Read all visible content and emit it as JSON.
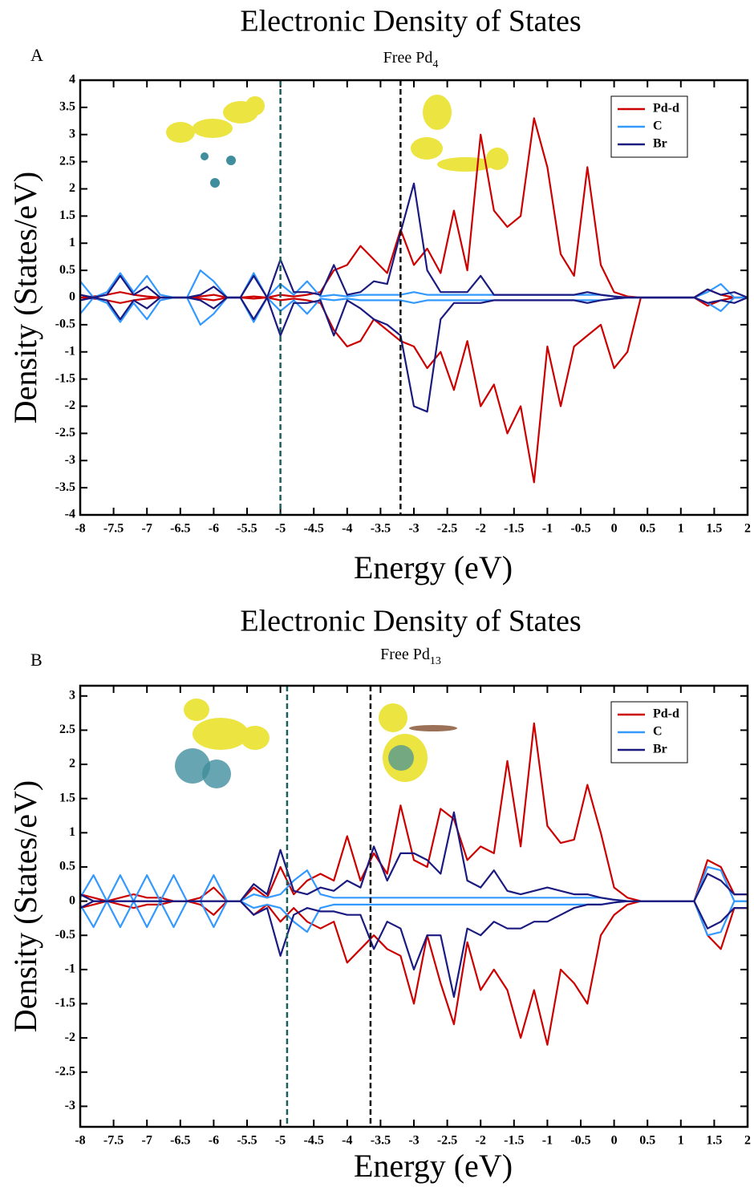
{
  "chart_data": [
    {
      "type": "line",
      "panel_label": "A",
      "title": "Electronic Density of States",
      "subtitle": [
        "Free Pd",
        "4"
      ],
      "xlabel": "Energy (eV)",
      "ylabel": "Density (States/eV)",
      "legend": "upper right",
      "x": [
        -8,
        -7.8,
        -7.6,
        -7.4,
        -7.2,
        -7,
        -6.8,
        -6.6,
        -6.4,
        -6.2,
        -6,
        -5.8,
        -5.6,
        -5.4,
        -5.2,
        -5,
        -4.8,
        -4.6,
        -4.4,
        -4.2,
        -4,
        -3.8,
        -3.6,
        -3.4,
        -3.2,
        -3,
        -2.8,
        -2.6,
        -2.4,
        -2.2,
        -2,
        -1.8,
        -1.6,
        -1.4,
        -1.2,
        -1,
        -0.8,
        -0.6,
        -0.4,
        -0.2,
        0,
        0.2,
        0.4,
        0.6,
        0.8,
        1,
        1.2,
        1.4,
        1.6,
        1.8,
        2
      ],
      "xlim": [
        -8,
        2
      ],
      "xticks": [
        -8,
        -7.5,
        -7,
        -6.5,
        -6,
        -5.5,
        -5,
        -4.5,
        -4,
        -3.5,
        -3,
        -2.5,
        -2,
        -1.5,
        -1,
        -0.5,
        0,
        0.5,
        1,
        1.5,
        2
      ],
      "ylim": [
        -4,
        4
      ],
      "yticks": [
        -4,
        -3.5,
        -3,
        -2.5,
        -2,
        -1.5,
        -1,
        -0.5,
        0,
        0.5,
        1,
        1.5,
        2,
        2.5,
        3,
        3.5,
        4
      ],
      "vlines": [
        {
          "value": -5,
          "color": "#1b5e5a"
        },
        {
          "value": -3.2,
          "color": "#111111"
        }
      ],
      "series": [
        {
          "name": "Pd-d",
          "color": "#cc0000",
          "values": [
            0,
            0.02,
            0.05,
            0.1,
            0.05,
            0.02,
            0,
            0,
            0,
            0.02,
            0.05,
            0,
            0,
            0.02,
            0,
            0.05,
            0.02,
            0.05,
            0.1,
            0.5,
            0.6,
            0.95,
            0.7,
            0.45,
            1.25,
            0.6,
            0.9,
            0.45,
            1.6,
            0.5,
            3.0,
            1.6,
            1.3,
            1.5,
            3.3,
            2.4,
            0.8,
            0.4,
            2.4,
            0.6,
            0.1,
            0.02,
            0,
            0,
            0,
            0,
            0,
            0.15,
            0.05,
            0,
            0
          ],
          "values_down": [
            0,
            -0.02,
            -0.05,
            -0.1,
            -0.05,
            -0.02,
            0,
            0,
            0,
            -0.02,
            -0.05,
            0,
            0,
            -0.02,
            0,
            -0.05,
            -0.02,
            -0.05,
            -0.1,
            -0.6,
            -0.9,
            -0.8,
            -0.4,
            -0.6,
            -0.8,
            -0.9,
            -1.3,
            -1.0,
            -1.7,
            -0.8,
            -2.0,
            -1.6,
            -2.5,
            -2.0,
            -3.4,
            -0.9,
            -2.0,
            -0.9,
            -0.7,
            -0.5,
            -1.3,
            -1.0,
            0,
            0,
            0,
            0,
            0,
            -0.15,
            -0.05,
            0,
            0
          ]
        },
        {
          "name": "C",
          "color": "#3399ff",
          "values": [
            0.3,
            0,
            0.1,
            0.45,
            0.1,
            0.4,
            0.05,
            0,
            0,
            0.5,
            0.3,
            0,
            0,
            0.45,
            0,
            0.25,
            0.05,
            0.3,
            0.02,
            0.05,
            0.02,
            0.05,
            0.05,
            0.05,
            0.05,
            0.1,
            0.05,
            0.05,
            0.05,
            0.05,
            0.05,
            0.05,
            0.05,
            0.05,
            0.05,
            0.05,
            0.05,
            0.05,
            0.05,
            0.05,
            0.02,
            0,
            0,
            0,
            0,
            0,
            0,
            0.1,
            0.25,
            0,
            0
          ],
          "values_down": [
            -0.3,
            0,
            -0.1,
            -0.45,
            -0.1,
            -0.4,
            -0.05,
            0,
            0,
            -0.5,
            -0.3,
            0,
            0,
            -0.45,
            0,
            -0.25,
            -0.05,
            -0.3,
            -0.02,
            -0.05,
            -0.02,
            -0.05,
            -0.05,
            -0.05,
            -0.05,
            -0.1,
            -0.05,
            -0.05,
            -0.05,
            -0.05,
            -0.05,
            -0.05,
            -0.05,
            -0.05,
            -0.05,
            -0.05,
            -0.05,
            -0.05,
            -0.05,
            -0.05,
            -0.02,
            0,
            0,
            0,
            0,
            0,
            0,
            -0.1,
            -0.25,
            0,
            0
          ]
        },
        {
          "name": "Br",
          "color": "#1a1a80",
          "values": [
            0.05,
            0,
            0.05,
            0.4,
            0.05,
            0.2,
            0,
            0,
            0,
            0.05,
            0.2,
            0,
            0,
            0.4,
            0,
            0.7,
            0.1,
            0.1,
            0.05,
            0.6,
            0.05,
            0.1,
            0.3,
            0.25,
            1.2,
            2.1,
            0.5,
            0.1,
            0.1,
            0.1,
            0.4,
            0.05,
            0.05,
            0.05,
            0.05,
            0.05,
            0.05,
            0.05,
            0.1,
            0.05,
            0.02,
            0,
            0,
            0,
            0,
            0,
            0,
            0.15,
            0.05,
            0.1,
            0
          ],
          "values_down": [
            -0.05,
            0,
            -0.05,
            -0.4,
            -0.05,
            -0.2,
            0,
            0,
            0,
            -0.05,
            -0.2,
            0,
            0,
            -0.4,
            0,
            -0.7,
            -0.1,
            -0.1,
            -0.05,
            -0.7,
            -0.05,
            -0.2,
            -0.4,
            -0.5,
            -0.7,
            -2.0,
            -2.1,
            -0.4,
            -0.1,
            -0.1,
            -0.1,
            -0.05,
            -0.05,
            -0.05,
            -0.05,
            -0.05,
            -0.05,
            -0.05,
            -0.1,
            -0.05,
            -0.02,
            0,
            0,
            0,
            0,
            0,
            0,
            -0.1,
            -0.05,
            -0.1,
            0
          ]
        }
      ]
    },
    {
      "type": "line",
      "panel_label": "B",
      "title": "Electronic Density of States",
      "subtitle": [
        "Free Pd",
        "13"
      ],
      "xlabel": "Energy (eV)",
      "ylabel": "Density (States/eV)",
      "legend": "upper right",
      "x": [
        -8,
        -7.8,
        -7.6,
        -7.4,
        -7.2,
        -7,
        -6.8,
        -6.6,
        -6.4,
        -6.2,
        -6,
        -5.8,
        -5.6,
        -5.4,
        -5.2,
        -5,
        -4.8,
        -4.6,
        -4.4,
        -4.2,
        -4,
        -3.8,
        -3.6,
        -3.4,
        -3.2,
        -3,
        -2.8,
        -2.6,
        -2.4,
        -2.2,
        -2,
        -1.8,
        -1.6,
        -1.4,
        -1.2,
        -1,
        -0.8,
        -0.6,
        -0.4,
        -0.2,
        0,
        0.2,
        0.4,
        0.6,
        0.8,
        1,
        1.2,
        1.4,
        1.6,
        1.8,
        2
      ],
      "xlim": [
        -8,
        2
      ],
      "xticks": [
        -8,
        -7.5,
        -7,
        -6.5,
        -6,
        -5.5,
        -5,
        -4.5,
        -4,
        -3.5,
        -3,
        -2.5,
        -2,
        -1.5,
        -1,
        -0.5,
        0,
        0.5,
        1,
        1.5,
        2
      ],
      "ylim": [
        -3.3,
        3.15
      ],
      "yticks": [
        -3,
        -2.5,
        -2,
        -1.5,
        -1,
        -0.5,
        0,
        0.5,
        1,
        1.5,
        2,
        2.5,
        3
      ],
      "vlines": [
        {
          "value": -4.9,
          "color": "#1b5e5a"
        },
        {
          "value": -3.65,
          "color": "#111111"
        }
      ],
      "series": [
        {
          "name": "Pd-d",
          "color": "#cc0000",
          "values": [
            0.1,
            0.05,
            0,
            0.05,
            0.1,
            0.05,
            0.05,
            0,
            0,
            0.05,
            0.2,
            0,
            0,
            0.2,
            0.05,
            0.5,
            0.1,
            0.3,
            0.4,
            0.3,
            0.95,
            0.3,
            0.7,
            0.4,
            1.4,
            0.6,
            0.5,
            1.35,
            1.2,
            0.6,
            0.8,
            0.7,
            2.05,
            0.8,
            2.6,
            1.1,
            0.85,
            0.9,
            1.7,
            1.0,
            0.2,
            0.05,
            0,
            0,
            0,
            0,
            0,
            0.6,
            0.5,
            0.1,
            0.1
          ],
          "values_down": [
            -0.1,
            -0.05,
            0,
            -0.05,
            -0.1,
            -0.05,
            -0.05,
            0,
            0,
            -0.05,
            -0.2,
            0,
            0,
            -0.2,
            -0.05,
            -0.3,
            -0.1,
            -0.3,
            -0.4,
            -0.3,
            -0.9,
            -0.7,
            -0.5,
            -0.7,
            -0.8,
            -1.5,
            -0.5,
            -1.2,
            -1.8,
            -0.6,
            -1.3,
            -1.0,
            -1.3,
            -2.0,
            -1.3,
            -2.1,
            -1.0,
            -1.2,
            -1.5,
            -0.5,
            -0.2,
            -0.05,
            0,
            0,
            0,
            0,
            0,
            -0.5,
            -0.7,
            -0.1,
            -0.1
          ]
        },
        {
          "name": "C",
          "color": "#3399ff",
          "values": [
            0.05,
            0.38,
            0,
            0.38,
            0,
            0.38,
            0,
            0.38,
            0,
            0,
            0.38,
            0,
            0,
            0.1,
            0.05,
            0.1,
            0.3,
            0.45,
            0.1,
            0.05,
            0.05,
            0.05,
            0.05,
            0.05,
            0.05,
            0.05,
            0.05,
            0.05,
            0.05,
            0.05,
            0.05,
            0.05,
            0.05,
            0.05,
            0.05,
            0.05,
            0.05,
            0.05,
            0.05,
            0.05,
            0.02,
            0,
            0,
            0,
            0,
            0,
            0,
            0.5,
            0.45,
            0,
            0
          ],
          "values_down": [
            -0.05,
            -0.38,
            0,
            -0.38,
            0,
            -0.38,
            0,
            -0.38,
            0,
            0,
            -0.38,
            0,
            0,
            -0.1,
            -0.05,
            -0.1,
            -0.3,
            -0.45,
            -0.1,
            -0.05,
            -0.05,
            -0.05,
            -0.05,
            -0.05,
            -0.05,
            -0.05,
            -0.05,
            -0.05,
            -0.05,
            -0.05,
            -0.05,
            -0.05,
            -0.05,
            -0.05,
            -0.05,
            -0.05,
            -0.05,
            -0.05,
            -0.05,
            -0.05,
            -0.02,
            0,
            0,
            0,
            0,
            0,
            0,
            -0.5,
            -0.45,
            0,
            0
          ]
        },
        {
          "name": "Br",
          "color": "#1a1a80",
          "values": [
            0.1,
            0,
            0,
            0,
            0,
            0,
            0,
            0,
            0,
            0,
            0,
            0,
            0,
            0.25,
            0.1,
            0.75,
            0.15,
            0.1,
            0.2,
            0.15,
            0.3,
            0.2,
            0.8,
            0.3,
            0.7,
            0.7,
            0.6,
            0.4,
            1.3,
            0.3,
            0.2,
            0.45,
            0.15,
            0.1,
            0.15,
            0.2,
            0.15,
            0.1,
            0.1,
            0.05,
            0.02,
            0,
            0,
            0,
            0,
            0,
            0,
            0.4,
            0.3,
            0.1,
            0.1
          ],
          "values_down": [
            -0.1,
            0,
            0,
            0,
            0,
            0,
            0,
            0,
            0,
            0,
            0,
            0,
            0,
            -0.2,
            -0.1,
            -0.8,
            -0.2,
            -0.1,
            -0.15,
            -0.15,
            -0.2,
            -0.2,
            -0.7,
            -0.3,
            -0.4,
            -1.0,
            -0.5,
            -0.5,
            -1.4,
            -0.4,
            -0.5,
            -0.3,
            -0.4,
            -0.4,
            -0.3,
            -0.3,
            -0.2,
            -0.1,
            -0.05,
            -0.05,
            -0.02,
            0,
            0,
            0,
            0,
            0,
            0,
            -0.4,
            -0.3,
            -0.1,
            -0.1
          ]
        }
      ]
    }
  ]
}
